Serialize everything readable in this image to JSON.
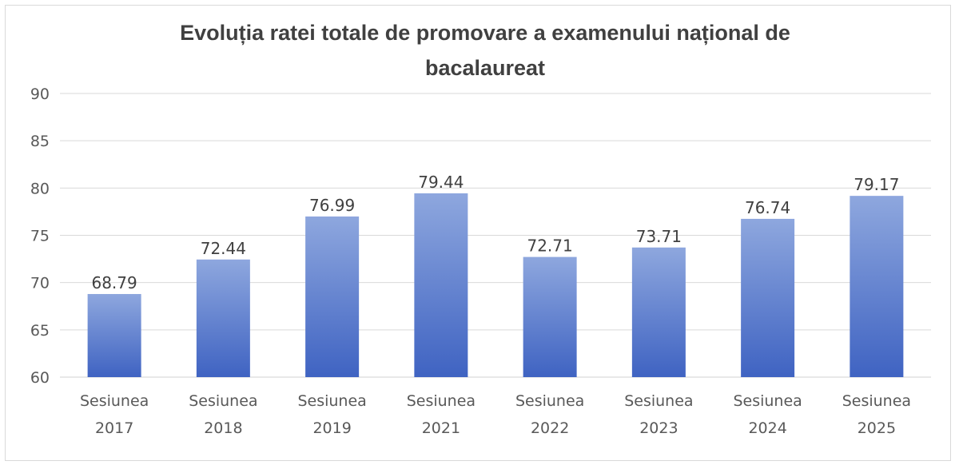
{
  "chart_data": {
    "type": "bar",
    "title": "Evoluția ratei totale de promovare a examenului național de bacalaureat",
    "categories": [
      [
        "Sesiunea",
        "2017"
      ],
      [
        "Sesiunea",
        "2018"
      ],
      [
        "Sesiunea",
        "2019"
      ],
      [
        "Sesiunea",
        "2021"
      ],
      [
        "Sesiunea",
        "2022"
      ],
      [
        "Sesiunea",
        "2023"
      ],
      [
        "Sesiunea",
        "2024"
      ],
      [
        "Sesiunea",
        "2025"
      ]
    ],
    "values": [
      68.79,
      72.44,
      76.99,
      79.44,
      72.71,
      73.71,
      76.74,
      79.17
    ],
    "value_labels": [
      "68.79",
      "72.44",
      "76.99",
      "79.44",
      "72.71",
      "73.71",
      "76.74",
      "79.17"
    ],
    "ylim": [
      60,
      90
    ],
    "yticks": [
      60,
      65,
      70,
      75,
      80,
      85,
      90
    ],
    "ytick_labels": [
      "60",
      "65",
      "70",
      "75",
      "80",
      "85",
      "90"
    ],
    "xlabel": "",
    "ylabel": "",
    "grid": true,
    "legend": "none",
    "colors": {
      "bar_top": "#8ea7de",
      "bar_bottom": "#3f63c2",
      "grid": "#d9d9d9",
      "text": "#404040"
    }
  }
}
